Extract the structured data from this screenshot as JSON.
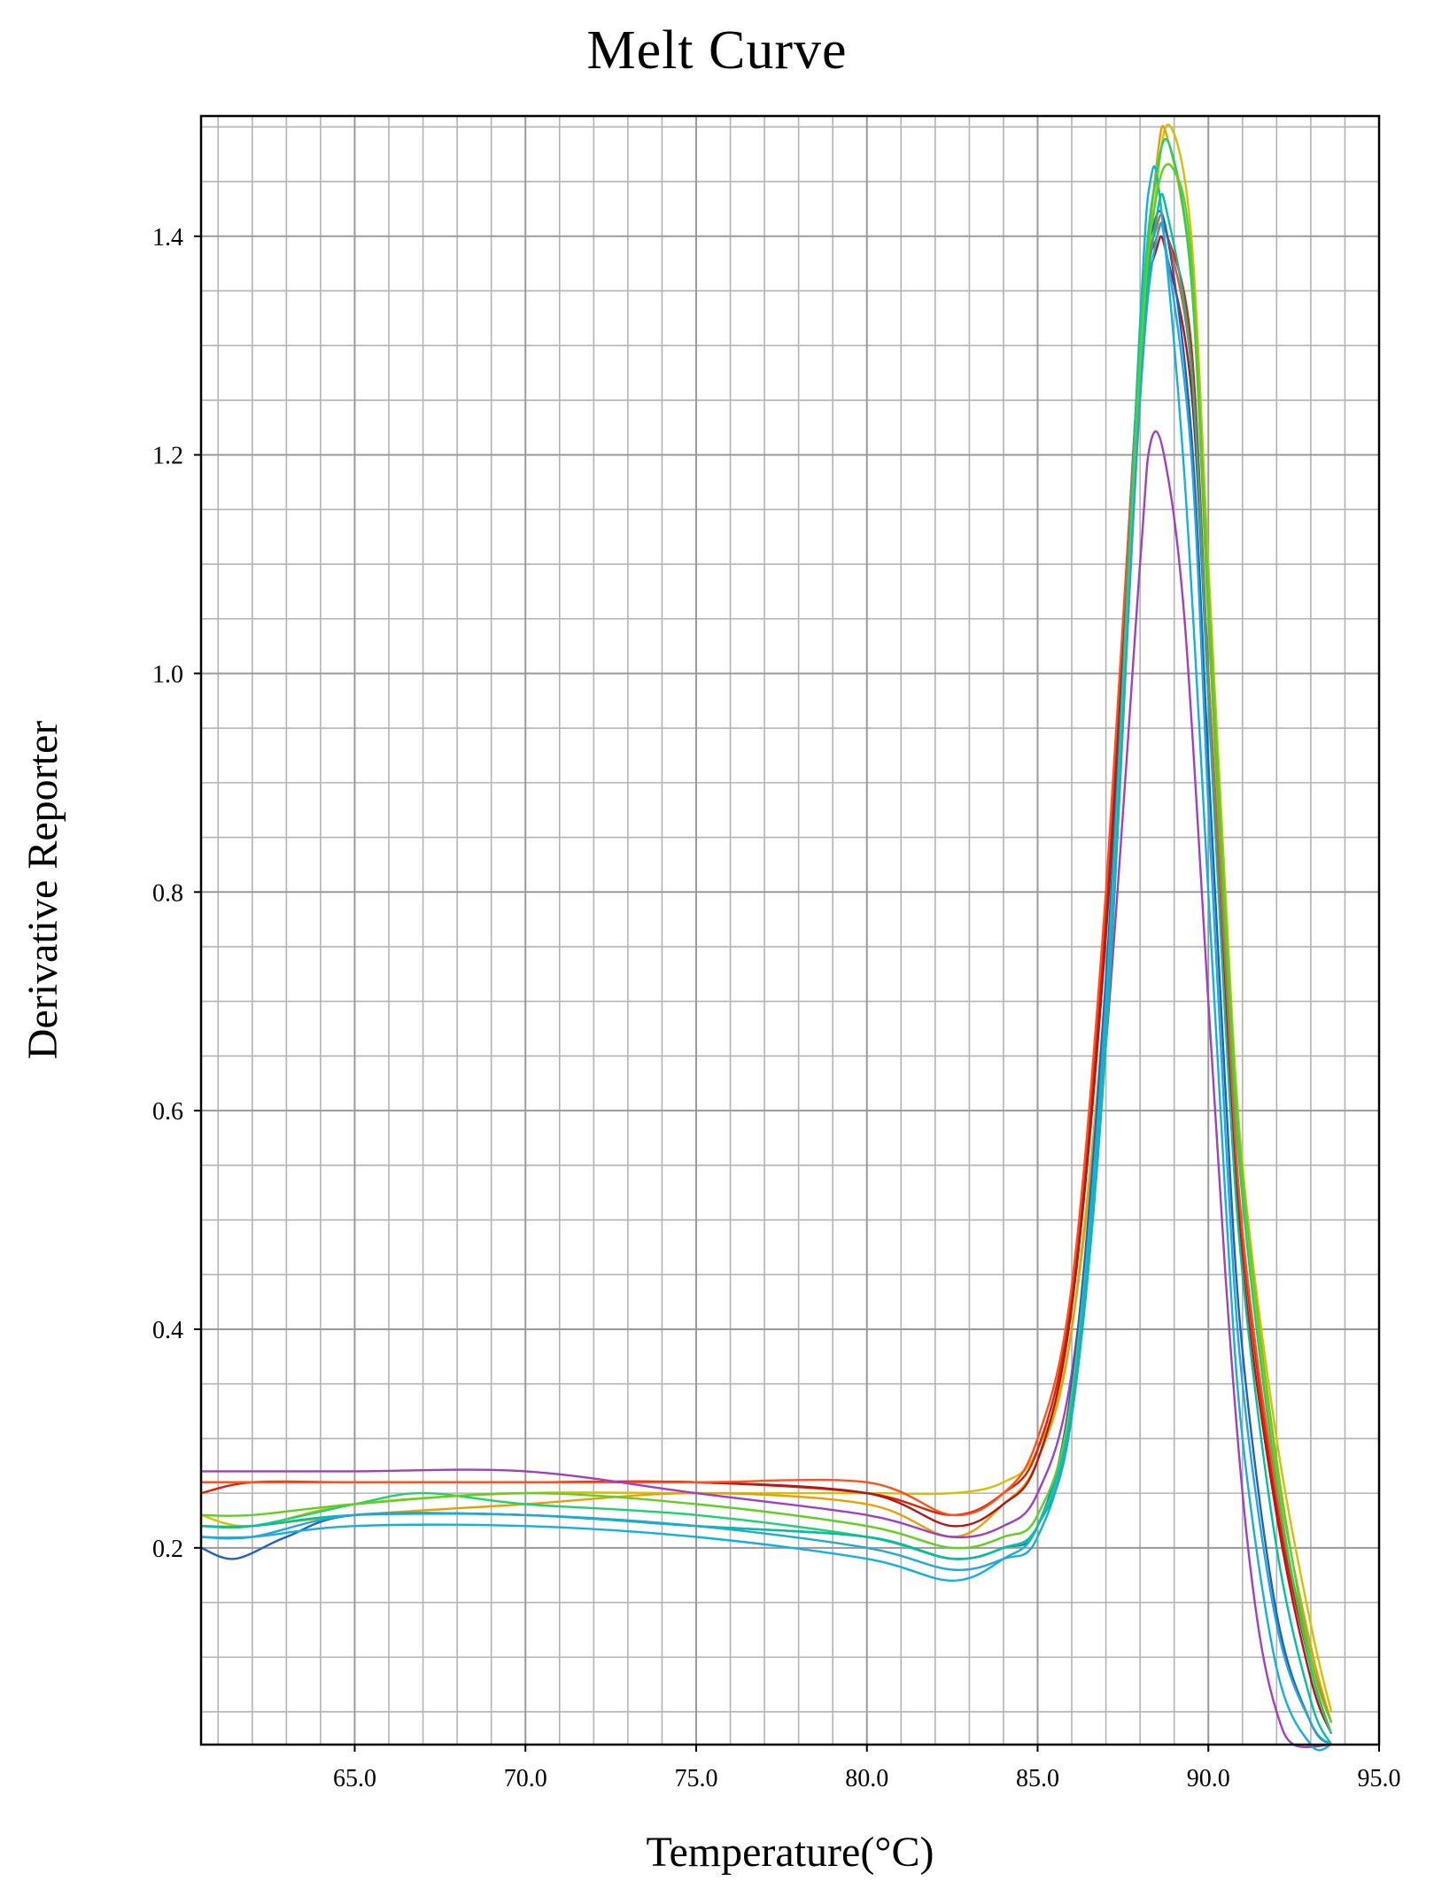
{
  "chart_data": {
    "type": "line",
    "title": "Melt Curve",
    "xlabel": "Temperature(°C)",
    "ylabel": "Derivative Reporter",
    "xlim": [
      60.5,
      95.0
    ],
    "ylim": [
      0.02,
      1.51
    ],
    "xticks": [
      65.0,
      70.0,
      75.0,
      80.0,
      85.0,
      90.0,
      95.0
    ],
    "xtick_labels": [
      "65.0",
      "70.0",
      "75.0",
      "80.0",
      "85.0",
      "90.0",
      "95.0"
    ],
    "yticks": [
      0.2,
      0.4,
      0.6,
      0.8,
      1.0,
      1.2,
      1.4
    ],
    "ytick_labels": [
      "0.2",
      "0.4",
      "0.6",
      "0.8",
      "1.0",
      "1.2",
      "1.4"
    ],
    "grid": true,
    "legend": "none",
    "series": [
      {
        "color": "#d4c000",
        "points": [
          [
            60.5,
            0.23
          ],
          [
            62,
            0.22
          ],
          [
            65,
            0.24
          ],
          [
            70,
            0.25
          ],
          [
            75,
            0.25
          ],
          [
            80,
            0.25
          ],
          [
            82.5,
            0.25
          ],
          [
            84,
            0.26
          ],
          [
            85,
            0.29
          ],
          [
            86,
            0.4
          ],
          [
            87,
            0.7
          ],
          [
            88,
            1.25
          ],
          [
            88.5,
            1.45
          ],
          [
            88.9,
            1.5
          ],
          [
            89.5,
            1.4
          ],
          [
            90,
            1.1
          ],
          [
            90.5,
            0.8
          ],
          [
            91,
            0.55
          ],
          [
            92,
            0.3
          ],
          [
            93,
            0.13
          ],
          [
            93.6,
            0.05
          ]
        ]
      },
      {
        "color": "#e8a000",
        "points": [
          [
            60.5,
            0.22
          ],
          [
            62,
            0.22
          ],
          [
            65,
            0.23
          ],
          [
            70,
            0.24
          ],
          [
            75,
            0.25
          ],
          [
            80,
            0.24
          ],
          [
            82.5,
            0.21
          ],
          [
            84,
            0.24
          ],
          [
            85,
            0.28
          ],
          [
            86,
            0.4
          ],
          [
            87,
            0.72
          ],
          [
            88,
            1.28
          ],
          [
            88.5,
            1.47
          ],
          [
            88.8,
            1.49
          ],
          [
            89.5,
            1.36
          ],
          [
            90,
            1.05
          ],
          [
            90.5,
            0.75
          ],
          [
            91,
            0.52
          ],
          [
            92,
            0.27
          ],
          [
            93,
            0.11
          ],
          [
            93.6,
            0.04
          ]
        ]
      },
      {
        "color": "#e02000",
        "points": [
          [
            60.5,
            0.25
          ],
          [
            62,
            0.26
          ],
          [
            65,
            0.26
          ],
          [
            70,
            0.26
          ],
          [
            75,
            0.26
          ],
          [
            80,
            0.25
          ],
          [
            82.5,
            0.23
          ],
          [
            84,
            0.25
          ],
          [
            85,
            0.29
          ],
          [
            86,
            0.43
          ],
          [
            87,
            0.78
          ],
          [
            88,
            1.3
          ],
          [
            88.5,
            1.4
          ],
          [
            88.8,
            1.4
          ],
          [
            89.5,
            1.3
          ],
          [
            90,
            1.0
          ],
          [
            90.5,
            0.72
          ],
          [
            91,
            0.48
          ],
          [
            92,
            0.24
          ],
          [
            93,
            0.09
          ],
          [
            93.6,
            0.03
          ]
        ]
      },
      {
        "color": "#b01818",
        "points": [
          [
            60.5,
            0.26
          ],
          [
            62,
            0.26
          ],
          [
            65,
            0.26
          ],
          [
            70,
            0.26
          ],
          [
            75,
            0.26
          ],
          [
            80,
            0.25
          ],
          [
            82.5,
            0.22
          ],
          [
            84,
            0.24
          ],
          [
            85,
            0.28
          ],
          [
            86,
            0.42
          ],
          [
            87,
            0.76
          ],
          [
            88,
            1.28
          ],
          [
            88.5,
            1.39
          ],
          [
            88.8,
            1.38
          ],
          [
            89.5,
            1.26
          ],
          [
            90,
            0.98
          ],
          [
            90.5,
            0.7
          ],
          [
            91,
            0.46
          ],
          [
            92,
            0.23
          ],
          [
            93,
            0.08
          ],
          [
            93.6,
            0.03
          ]
        ]
      },
      {
        "color": "#ff5020",
        "points": [
          [
            60.5,
            0.26
          ],
          [
            62,
            0.26
          ],
          [
            65,
            0.26
          ],
          [
            70,
            0.26
          ],
          [
            75,
            0.26
          ],
          [
            80,
            0.26
          ],
          [
            82.5,
            0.23
          ],
          [
            84,
            0.25
          ],
          [
            85,
            0.3
          ],
          [
            86,
            0.44
          ],
          [
            87,
            0.8
          ],
          [
            88,
            1.3
          ],
          [
            88.5,
            1.41
          ],
          [
            88.8,
            1.4
          ],
          [
            89.5,
            1.28
          ],
          [
            90,
            1.0
          ],
          [
            90.5,
            0.73
          ],
          [
            91,
            0.49
          ],
          [
            92,
            0.25
          ],
          [
            93,
            0.1
          ],
          [
            93.6,
            0.04
          ]
        ]
      },
      {
        "color": "#a040c0",
        "points": [
          [
            60.5,
            0.27
          ],
          [
            62,
            0.27
          ],
          [
            65,
            0.27
          ],
          [
            70,
            0.27
          ],
          [
            75,
            0.25
          ],
          [
            80,
            0.23
          ],
          [
            82.5,
            0.21
          ],
          [
            84,
            0.22
          ],
          [
            85,
            0.25
          ],
          [
            86,
            0.36
          ],
          [
            87,
            0.66
          ],
          [
            88,
            1.1
          ],
          [
            88.3,
            1.21
          ],
          [
            88.7,
            1.2
          ],
          [
            89.3,
            1.05
          ],
          [
            90,
            0.7
          ],
          [
            90.5,
            0.45
          ],
          [
            91,
            0.25
          ],
          [
            91.5,
            0.12
          ],
          [
            92,
            0.05
          ],
          [
            92.5,
            0.02
          ],
          [
            93.6,
            0.02
          ]
        ]
      },
      {
        "color": "#2060c0",
        "points": [
          [
            60.5,
            0.2
          ],
          [
            61.5,
            0.19
          ],
          [
            63,
            0.21
          ],
          [
            65,
            0.23
          ],
          [
            70,
            0.23
          ],
          [
            75,
            0.22
          ],
          [
            80,
            0.21
          ],
          [
            82.5,
            0.19
          ],
          [
            84,
            0.2
          ],
          [
            85,
            0.22
          ],
          [
            86,
            0.35
          ],
          [
            87,
            0.72
          ],
          [
            88,
            1.3
          ],
          [
            88.4,
            1.41
          ],
          [
            88.8,
            1.4
          ],
          [
            89.5,
            1.22
          ],
          [
            90,
            0.92
          ],
          [
            90.5,
            0.62
          ],
          [
            91,
            0.38
          ],
          [
            92,
            0.14
          ],
          [
            93,
            0.04
          ],
          [
            93.6,
            0.02
          ]
        ]
      },
      {
        "color": "#10b0e0",
        "points": [
          [
            60.5,
            0.21
          ],
          [
            62,
            0.21
          ],
          [
            65,
            0.22
          ],
          [
            70,
            0.22
          ],
          [
            75,
            0.21
          ],
          [
            80,
            0.19
          ],
          [
            82.5,
            0.17
          ],
          [
            84,
            0.19
          ],
          [
            85,
            0.22
          ],
          [
            86,
            0.34
          ],
          [
            87,
            0.7
          ],
          [
            88,
            1.32
          ],
          [
            88.3,
            1.45
          ],
          [
            88.6,
            1.43
          ],
          [
            89.3,
            1.18
          ],
          [
            90,
            0.8
          ],
          [
            90.5,
            0.52
          ],
          [
            91,
            0.3
          ],
          [
            92,
            0.09
          ],
          [
            93,
            0.02
          ],
          [
            93.6,
            0.02
          ]
        ]
      },
      {
        "color": "#20d070",
        "points": [
          [
            60.5,
            0.22
          ],
          [
            62,
            0.22
          ],
          [
            65,
            0.24
          ],
          [
            67,
            0.25
          ],
          [
            70,
            0.24
          ],
          [
            75,
            0.23
          ],
          [
            80,
            0.21
          ],
          [
            82.5,
            0.19
          ],
          [
            84,
            0.2
          ],
          [
            85,
            0.22
          ],
          [
            86,
            0.33
          ],
          [
            87,
            0.68
          ],
          [
            88,
            1.3
          ],
          [
            88.5,
            1.46
          ],
          [
            88.9,
            1.48
          ],
          [
            89.5,
            1.36
          ],
          [
            90,
            1.06
          ],
          [
            90.5,
            0.76
          ],
          [
            91,
            0.52
          ],
          [
            92,
            0.26
          ],
          [
            93,
            0.09
          ],
          [
            93.6,
            0.03
          ]
        ]
      },
      {
        "color": "#00c0a0",
        "points": [
          [
            60.5,
            0.22
          ],
          [
            62,
            0.22
          ],
          [
            65,
            0.23
          ],
          [
            70,
            0.23
          ],
          [
            75,
            0.22
          ],
          [
            80,
            0.21
          ],
          [
            82.5,
            0.19
          ],
          [
            84,
            0.2
          ],
          [
            85,
            0.22
          ],
          [
            86,
            0.32
          ],
          [
            87,
            0.66
          ],
          [
            88,
            1.26
          ],
          [
            88.5,
            1.42
          ],
          [
            88.8,
            1.42
          ],
          [
            89.5,
            1.28
          ],
          [
            90,
            0.98
          ],
          [
            90.5,
            0.68
          ],
          [
            91,
            0.45
          ],
          [
            92,
            0.2
          ],
          [
            93,
            0.06
          ],
          [
            93.6,
            0.02
          ]
        ]
      },
      {
        "color": "#60d020",
        "points": [
          [
            60.5,
            0.23
          ],
          [
            62,
            0.23
          ],
          [
            65,
            0.24
          ],
          [
            70,
            0.25
          ],
          [
            75,
            0.24
          ],
          [
            80,
            0.22
          ],
          [
            82.5,
            0.2
          ],
          [
            84,
            0.21
          ],
          [
            85,
            0.23
          ],
          [
            86,
            0.34
          ],
          [
            87,
            0.68
          ],
          [
            88,
            1.28
          ],
          [
            88.5,
            1.44
          ],
          [
            89,
            1.46
          ],
          [
            89.5,
            1.38
          ],
          [
            90,
            1.08
          ],
          [
            90.5,
            0.78
          ],
          [
            91,
            0.54
          ],
          [
            92,
            0.28
          ],
          [
            93,
            0.1
          ],
          [
            93.6,
            0.04
          ]
        ]
      },
      {
        "color": "#20a8d8",
        "points": [
          [
            60.5,
            0.21
          ],
          [
            62,
            0.21
          ],
          [
            65,
            0.23
          ],
          [
            70,
            0.23
          ],
          [
            75,
            0.22
          ],
          [
            80,
            0.2
          ],
          [
            82.5,
            0.18
          ],
          [
            84,
            0.19
          ],
          [
            85,
            0.21
          ],
          [
            86,
            0.33
          ],
          [
            87,
            0.68
          ],
          [
            88,
            1.25
          ],
          [
            88.5,
            1.4
          ],
          [
            88.8,
            1.38
          ],
          [
            89.5,
            1.2
          ],
          [
            90,
            0.88
          ],
          [
            90.5,
            0.58
          ],
          [
            91,
            0.35
          ],
          [
            92,
            0.13
          ],
          [
            93,
            0.04
          ],
          [
            93.6,
            0.02
          ]
        ]
      }
    ]
  }
}
